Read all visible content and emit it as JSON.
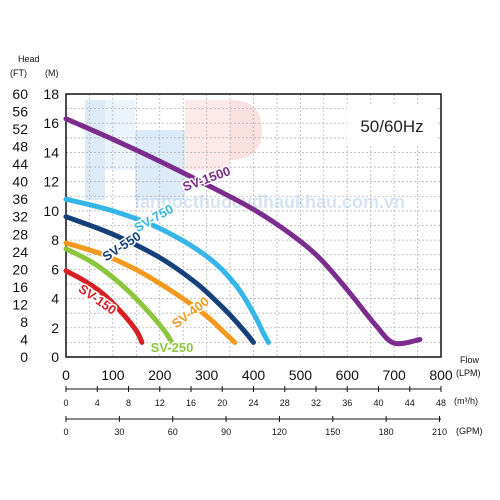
{
  "chart_data": {
    "type": "line",
    "title": "50/60Hz",
    "header": {
      "label": "Head",
      "unit_ft": "(FT)",
      "unit_m": "(M)"
    },
    "x_axis": {
      "label": "Flow",
      "unit": "(LPM)",
      "range": [
        0,
        800
      ],
      "ticks": [
        "0",
        "100",
        "200",
        "300",
        "400",
        "500",
        "600",
        "700",
        "800"
      ]
    },
    "x_axis_m3h": {
      "unit": "(m³/h)",
      "ticks": [
        "0",
        "4",
        "8",
        "12",
        "16",
        "20",
        "24",
        "28",
        "32",
        "36",
        "40",
        "44",
        "48"
      ]
    },
    "x_axis_gpm": {
      "unit": "(GPM)",
      "ticks": [
        "0",
        "30",
        "60",
        "90",
        "120",
        "150",
        "180",
        "210"
      ]
    },
    "y_axis_m": {
      "range": [
        0,
        18
      ],
      "ticks": [
        "0",
        "2",
        "4",
        "6",
        "8",
        "10",
        "12",
        "14",
        "16",
        "18"
      ]
    },
    "y_axis_ft": {
      "ticks": [
        "0",
        "4",
        "8",
        "12",
        "16",
        "20",
        "24",
        "28",
        "32",
        "36",
        "40",
        "44",
        "48",
        "52",
        "56",
        "60"
      ]
    },
    "grid": true,
    "series": [
      {
        "name": "SV-1500",
        "color": "#7b2d8e",
        "points": [
          [
            0,
            16.3
          ],
          [
            100,
            14.9
          ],
          [
            200,
            13.4
          ],
          [
            300,
            11.8
          ],
          [
            400,
            10.1
          ],
          [
            480,
            8.4
          ],
          [
            540,
            6.8
          ],
          [
            600,
            4.6
          ],
          [
            660,
            2.2
          ],
          [
            700,
            0.95
          ],
          [
            755,
            1.2
          ]
        ]
      },
      {
        "name": "SV-750",
        "color": "#36b6e8",
        "points": [
          [
            0,
            10.8
          ],
          [
            100,
            10.0
          ],
          [
            200,
            8.8
          ],
          [
            300,
            6.9
          ],
          [
            360,
            5.0
          ],
          [
            400,
            3.0
          ],
          [
            420,
            1.7
          ],
          [
            432,
            1.0
          ]
        ]
      },
      {
        "name": "SV-550",
        "color": "#16407a",
        "points": [
          [
            0,
            9.6
          ],
          [
            100,
            8.4
          ],
          [
            200,
            6.8
          ],
          [
            280,
            5.0
          ],
          [
            340,
            3.2
          ],
          [
            380,
            1.8
          ],
          [
            400,
            1.0
          ]
        ]
      },
      {
        "name": "SV-400",
        "color": "#f39a1e",
        "points": [
          [
            0,
            7.8
          ],
          [
            80,
            7.0
          ],
          [
            160,
            5.8
          ],
          [
            240,
            4.2
          ],
          [
            300,
            2.8
          ],
          [
            340,
            1.6
          ],
          [
            360,
            1.0
          ]
        ]
      },
      {
        "name": "SV-250",
        "color": "#8cc63e",
        "points": [
          [
            0,
            7.4
          ],
          [
            60,
            6.4
          ],
          [
            120,
            4.9
          ],
          [
            170,
            3.3
          ],
          [
            210,
            1.8
          ],
          [
            225,
            1.0
          ]
        ]
      },
      {
        "name": "SV-150",
        "color": "#d91f26",
        "points": [
          [
            0,
            5.9
          ],
          [
            40,
            5.2
          ],
          [
            80,
            4.3
          ],
          [
            120,
            3.0
          ],
          [
            150,
            1.8
          ],
          [
            162,
            1.0
          ]
        ]
      }
    ]
  },
  "watermark": {
    "logo_letters": "LP",
    "text": "lanhocthuocvdhaukhau.com.vn"
  }
}
